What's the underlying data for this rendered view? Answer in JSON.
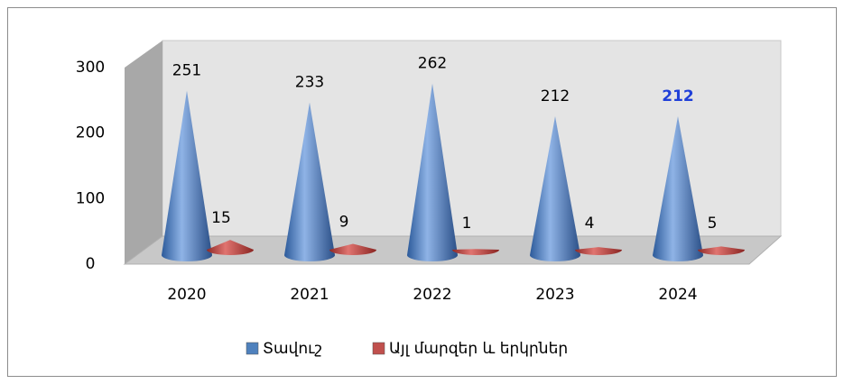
{
  "chart_data": {
    "type": "cone",
    "categories": [
      "2020",
      "2021",
      "2022",
      "2023",
      "2024"
    ],
    "series": [
      {
        "name": "Տավուշ",
        "color": "#4f81bd",
        "values": [
          251,
          233,
          262,
          212,
          212
        ]
      },
      {
        "name": "Այլ մարզեր և երկրներ",
        "color": "#c0504d",
        "values": [
          15,
          9,
          1,
          4,
          5
        ]
      }
    ],
    "ylim": [
      0,
      300
    ],
    "yticks": [
      0,
      100,
      200,
      300
    ],
    "legend": "bottom"
  }
}
